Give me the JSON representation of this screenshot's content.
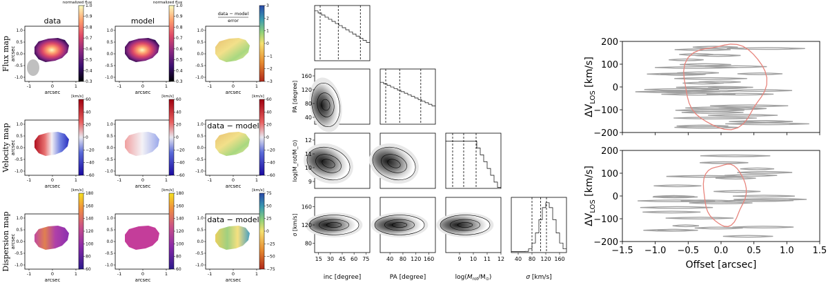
{
  "chart_data": [
    {
      "type": "heatmap",
      "panel": "kinematic-maps",
      "columns": [
        "data",
        "model"
      ],
      "row_labels": [
        "Flux map",
        "Velocity map",
        "Dispersion map"
      ],
      "axis_unit": "arcsec",
      "x_ticks": [
        "-1",
        "0",
        "1"
      ],
      "y_ticks": [
        "1.0",
        "0.5",
        "0.0",
        "-0.5",
        "-1.0"
      ],
      "colorbars": [
        {
          "row": 0,
          "kind": "flux",
          "label": "normalized flux",
          "ticks": [
            "1.0",
            "0.9",
            "0.8",
            "0.7",
            "0.6",
            "0.5",
            "0.4",
            "0.3"
          ],
          "range": [
            0.3,
            1.0
          ]
        },
        {
          "row": 0,
          "kind": "residual",
          "label_top": "data − model",
          "label_bottom": "error",
          "ticks": [
            "3",
            "2",
            "1",
            "0",
            "−1",
            "−2",
            "−3"
          ],
          "range": [
            -3,
            3
          ]
        },
        {
          "row": 1,
          "kind": "velocity",
          "label": "[km/s]",
          "ticks": [
            "60",
            "40",
            "20",
            "0",
            "−20",
            "−40",
            "−60"
          ],
          "range": [
            -60,
            60
          ]
        },
        {
          "row": 1,
          "kind": "residual",
          "label": "[km/s]",
          "ticks": [
            "60",
            "40",
            "20",
            "0",
            "−20",
            "−40",
            "−60"
          ],
          "range": [
            -60,
            60
          ]
        },
        {
          "row": 2,
          "kind": "dispersion",
          "label": "[km/s]",
          "ticks": [
            "180",
            "160",
            "140",
            "120",
            "100",
            "80",
            "60"
          ],
          "range": [
            60,
            180
          ]
        },
        {
          "row": 2,
          "kind": "residual",
          "label": "[km/s]",
          "ticks": [
            "75",
            "50",
            "25",
            "0",
            "−25",
            "−50",
            "−75"
          ],
          "range": [
            -75,
            75
          ]
        }
      ],
      "residual_titles": [
        "data − model",
        "data − model"
      ],
      "beam": "grey ellipse lower-left of flux data panel"
    },
    {
      "type": "corner",
      "panel": "posterior-corner-plot",
      "parameters": [
        {
          "label": "inc [degree]",
          "ticks": [
            "15",
            "30",
            "45",
            "60",
            "75"
          ],
          "range": [
            10,
            80
          ],
          "quantiles": [
            17,
            40,
            68
          ]
        },
        {
          "label": "PA [degree]",
          "ticks": [
            "40",
            "80",
            "120",
            "160"
          ],
          "range": [
            10,
            180
          ],
          "quantiles": [
            27,
            70,
            135
          ]
        },
        {
          "label": "log(M_rot/M_⊙)",
          "label_parts": [
            "log(",
            "M",
            "rot",
            "/M",
            "⊙",
            ")"
          ],
          "ticks": [
            "9",
            "10",
            "11",
            "12"
          ],
          "range": [
            8,
            12
          ],
          "quantiles": [
            8.5,
            9.3,
            10.2
          ]
        },
        {
          "label": "σ [km/s]",
          "label_parts": [
            "σ",
            " [km/s]"
          ],
          "ticks": [
            "40",
            "80",
            "120",
            "160"
          ],
          "range": [
            20,
            180
          ],
          "quantiles": [
            80,
            105,
            122
          ]
        }
      ],
      "y_ticks": {
        "PA": [
          "40",
          "80",
          "120",
          "160"
        ],
        "logM": [
          "9",
          "10",
          "11",
          "12"
        ],
        "sigma": [
          "80",
          "120",
          "160"
        ]
      },
      "y_labels": [
        "PA [degree]",
        "log(M_rot/M_⊙)",
        "σ [km/s]"
      ]
    },
    {
      "type": "line",
      "panel": "pv-diagrams",
      "xlabel": "Offset [arcsec]",
      "ylabel_parts": [
        "ΔV",
        "LOS",
        " [km/s]"
      ],
      "x_ticks": [
        "−1.5",
        "−1.0",
        "−0.5",
        "0.0",
        "0.5",
        "1.0",
        "1.5"
      ],
      "y_ticks": [
        "200",
        "100",
        "0",
        "−100",
        "−200"
      ],
      "xlim": [
        -1.5,
        1.5
      ],
      "ylim": [
        -200,
        200
      ],
      "series_colors": {
        "data": "#a0a0a0",
        "model": "#e8847c"
      }
    }
  ],
  "colors": {
    "flux_palette": [
      "#000004",
      "#3b0f70",
      "#8c2981",
      "#de4968",
      "#fe9f6d",
      "#fcfdbf"
    ],
    "velocity_palette": [
      "#1a0aa0",
      "#5a6ad8",
      "#e8e8f0",
      "#e86060",
      "#a00010"
    ],
    "residual_palette": [
      "#b0281a",
      "#e68a30",
      "#f5e070",
      "#8ed07a",
      "#3a9ab0",
      "#2a4aa8"
    ],
    "dispersion_palette": [
      "#2a1a8a",
      "#8a2aa8",
      "#c8508a",
      "#f09040",
      "#f5e020"
    ],
    "accent_model_contour": "#e8847c",
    "data_contour": "#a0a0a0"
  }
}
